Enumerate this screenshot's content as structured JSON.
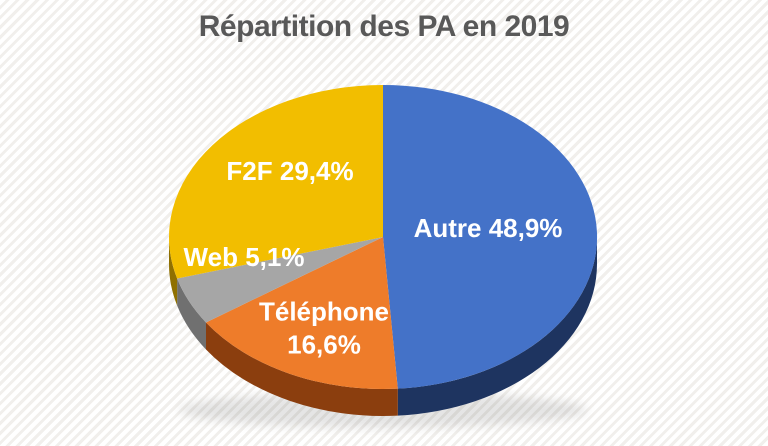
{
  "page": {
    "theme": {
      "title_color": "#595959",
      "label_color": "#FFFFFF",
      "background_base": "#FFFFFF",
      "background_stripe": "#F1EFEC"
    }
  },
  "chart_data": {
    "type": "pie",
    "is_3d": true,
    "title": "Répartition des PA en 2019",
    "start_angle_deg": 0,
    "direction": "clockwise",
    "legend": "none",
    "data_labels": "inside, category name + percent, French comma decimals",
    "slices": [
      {
        "id": "autre",
        "name": "Autre",
        "value": 48.9,
        "display_value": "48,9%",
        "color": "#4472C8",
        "side_color": "#1E3460"
      },
      {
        "id": "telephone",
        "name": "Téléphone",
        "value": 16.6,
        "display_value": "16,6%",
        "color": "#EE7C2A",
        "side_color": "#8B3E0E"
      },
      {
        "id": "web",
        "name": "Web",
        "value": 5.1,
        "display_value": "5,1%",
        "color": "#A6A6A6",
        "side_color": "#707070"
      },
      {
        "id": "f2f",
        "name": "F2F",
        "value": 29.4,
        "display_value": "29,4%",
        "color": "#F2BE00",
        "side_color": "#8F7000"
      }
    ]
  }
}
